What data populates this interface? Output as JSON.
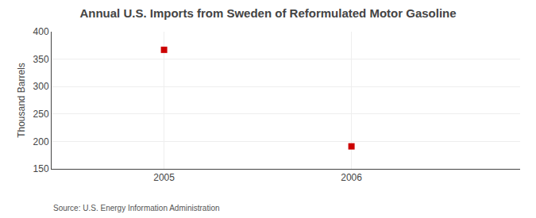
{
  "chart_data": {
    "type": "scatter",
    "title": "Annual U.S. Imports from Sweden of Reformulated Motor Gasoline",
    "ylabel": "Thousand Barrels",
    "annotations": [
      "Source: U.S. Energy Information Administration"
    ],
    "x": [
      2005,
      2006
    ],
    "values": [
      367,
      191
    ],
    "color": "#cc0000",
    "marker": "square",
    "xlim": [
      2004.4,
      2006.9
    ],
    "xticks": [
      2005,
      2006
    ],
    "ylim": [
      150,
      400
    ],
    "yticks": [
      150,
      200,
      250,
      300,
      350,
      400
    ],
    "grid": true
  }
}
